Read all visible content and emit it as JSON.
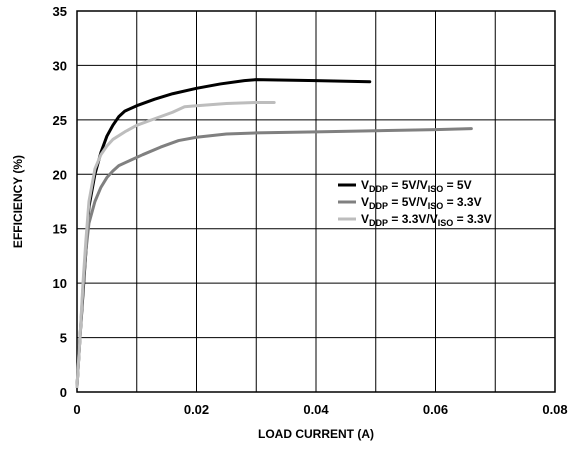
{
  "chart_data": {
    "type": "line",
    "xlabel": "LOAD CURRENT (A)",
    "ylabel": "EFFICIENCY (%)",
    "xlim": [
      0,
      0.08
    ],
    "ylim": [
      0,
      35
    ],
    "x_ticks": [
      "0",
      "0.02",
      "0.04",
      "0.06",
      "0.08"
    ],
    "y_ticks": [
      "0",
      "5",
      "10",
      "15",
      "20",
      "25",
      "30",
      "35"
    ],
    "grid": true,
    "legend_position": "right",
    "series": [
      {
        "name": "VDDP = 5V/VISO = 5V",
        "legend": {
          "v1": "V",
          "s1": "DDP",
          "mid": " = 5V/",
          "v2": "V",
          "s2": "ISO",
          "end": " = 5V"
        },
        "color": "#000000",
        "points": [
          [
            0.0,
            0.5
          ],
          [
            0.0005,
            5
          ],
          [
            0.001,
            9
          ],
          [
            0.0015,
            13
          ],
          [
            0.002,
            17
          ],
          [
            0.003,
            20
          ],
          [
            0.004,
            22
          ],
          [
            0.005,
            23.5
          ],
          [
            0.006,
            24.5
          ],
          [
            0.007,
            25.3
          ],
          [
            0.008,
            25.8
          ],
          [
            0.01,
            26.3
          ],
          [
            0.013,
            26.9
          ],
          [
            0.016,
            27.4
          ],
          [
            0.02,
            27.9
          ],
          [
            0.024,
            28.3
          ],
          [
            0.028,
            28.6
          ],
          [
            0.03,
            28.7
          ],
          [
            0.035,
            28.65
          ],
          [
            0.04,
            28.6
          ],
          [
            0.045,
            28.55
          ],
          [
            0.049,
            28.5
          ]
        ]
      },
      {
        "name": "VDDP = 5V/VISO = 3.3V",
        "legend": {
          "v1": "V",
          "s1": "DDP",
          "mid": " = 5V/",
          "v2": "V",
          "s2": "ISO",
          "end": " = 3.3V"
        },
        "color": "#808080",
        "points": [
          [
            0.0,
            0.5
          ],
          [
            0.0005,
            5
          ],
          [
            0.001,
            9.5
          ],
          [
            0.0015,
            13
          ],
          [
            0.002,
            15.5
          ],
          [
            0.003,
            17.5
          ],
          [
            0.004,
            18.8
          ],
          [
            0.005,
            19.7
          ],
          [
            0.006,
            20.3
          ],
          [
            0.007,
            20.8
          ],
          [
            0.009,
            21.3
          ],
          [
            0.011,
            21.8
          ],
          [
            0.014,
            22.5
          ],
          [
            0.017,
            23.1
          ],
          [
            0.02,
            23.4
          ],
          [
            0.025,
            23.7
          ],
          [
            0.03,
            23.8
          ],
          [
            0.04,
            23.9
          ],
          [
            0.05,
            24.0
          ],
          [
            0.06,
            24.1
          ],
          [
            0.066,
            24.2
          ]
        ]
      },
      {
        "name": "VDDP = 3.3V/VISO = 3.3V",
        "legend": {
          "v1": "V",
          "s1": "DDP",
          "mid": " = 3.3V/",
          "v2": "V",
          "s2": "ISO",
          "end": " = 3.3V"
        },
        "color": "#bdbdbd",
        "points": [
          [
            0.0,
            0.5
          ],
          [
            0.0005,
            5
          ],
          [
            0.001,
            10
          ],
          [
            0.0015,
            14
          ],
          [
            0.002,
            17.5
          ],
          [
            0.003,
            20.5
          ],
          [
            0.004,
            21.8
          ],
          [
            0.005,
            22.6
          ],
          [
            0.006,
            23.2
          ],
          [
            0.008,
            23.9
          ],
          [
            0.01,
            24.5
          ],
          [
            0.013,
            25.1
          ],
          [
            0.016,
            25.7
          ],
          [
            0.018,
            26.2
          ],
          [
            0.02,
            26.3
          ],
          [
            0.025,
            26.5
          ],
          [
            0.03,
            26.6
          ],
          [
            0.033,
            26.6
          ]
        ]
      }
    ]
  }
}
